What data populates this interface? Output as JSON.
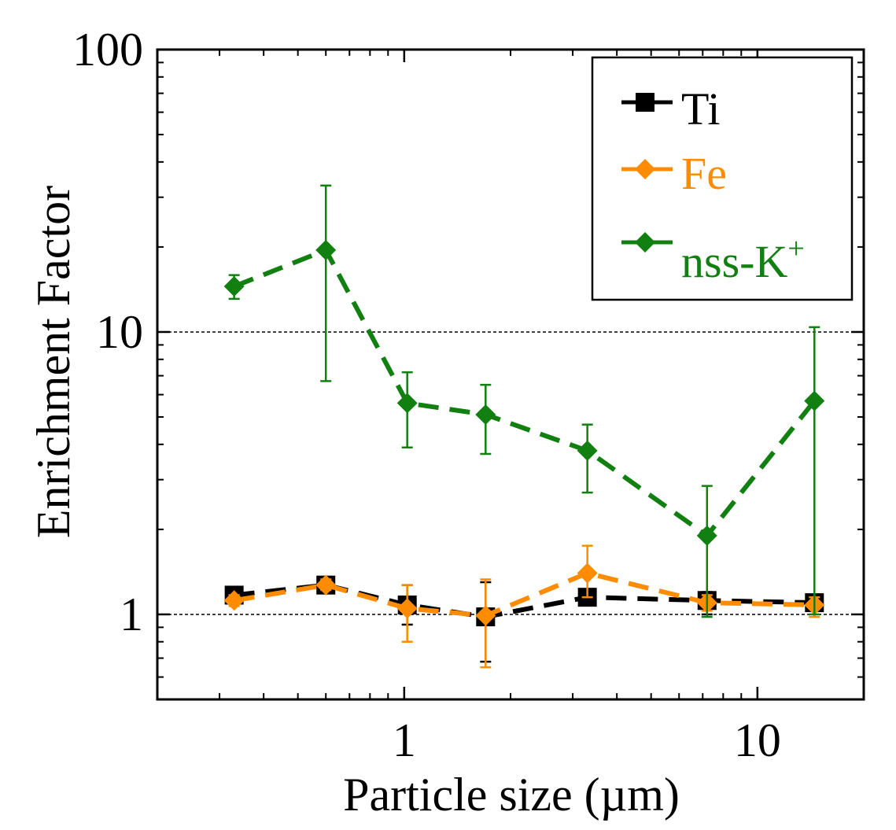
{
  "chart_data": {
    "type": "line",
    "xscale": "log",
    "yscale": "log",
    "xlim": [
      0.2,
      20
    ],
    "ylim": [
      0.5,
      100
    ],
    "xlabel": "Particle size (µm)",
    "ylabel": "Enrichment Factor",
    "x_ticks": [
      {
        "value": 1,
        "label": "1"
      },
      {
        "value": 10,
        "label": "10"
      }
    ],
    "y_ticks": [
      {
        "value": 1,
        "label": "1"
      },
      {
        "value": 10,
        "label": "10"
      },
      {
        "value": 100,
        "label": "100"
      }
    ],
    "gridlines_y": [
      1,
      10
    ],
    "legend_position": "top-right",
    "series": [
      {
        "name": "Ti",
        "color": "#000000",
        "marker": "square",
        "x": [
          0.33,
          0.6,
          1.02,
          1.7,
          3.3,
          7.2,
          14.5
        ],
        "values": [
          1.17,
          1.27,
          1.08,
          0.98,
          1.15,
          1.12,
          1.1
        ],
        "err_low": [
          1.12,
          1.2,
          0.92,
          0.68,
          1.12,
          1.0,
          1.05
        ],
        "err_high": [
          1.22,
          1.35,
          1.27,
          1.3,
          1.18,
          1.2,
          1.15
        ]
      },
      {
        "name": "Fe",
        "color": "#ff8c00",
        "marker": "diamond",
        "x": [
          0.33,
          0.6,
          1.02,
          1.7,
          3.3,
          7.2,
          14.5
        ],
        "values": [
          1.12,
          1.27,
          1.05,
          0.99,
          1.4,
          1.1,
          1.08
        ],
        "err_low": [
          1.07,
          1.22,
          0.8,
          0.65,
          1.15,
          1.03,
          0.98
        ],
        "err_high": [
          1.17,
          1.33,
          1.27,
          1.33,
          1.75,
          1.17,
          1.15
        ]
      },
      {
        "name": "nss-K⁺",
        "color": "#118011",
        "marker": "diamond",
        "x": [
          0.33,
          0.6,
          1.02,
          1.7,
          3.3,
          7.2,
          14.5
        ],
        "values": [
          14.5,
          19.5,
          5.6,
          5.1,
          3.8,
          1.9,
          5.7
        ],
        "err_low": [
          13.1,
          6.7,
          3.9,
          3.7,
          2.7,
          0.98,
          1.0
        ],
        "err_high": [
          15.9,
          33.0,
          7.2,
          6.5,
          4.7,
          2.85,
          10.4
        ]
      }
    ]
  },
  "legend": {
    "items": [
      {
        "label": "Ti",
        "color": "#000000",
        "marker": "square"
      },
      {
        "label": "Fe",
        "color": "#ff8c00",
        "marker": "diamond"
      },
      {
        "label": "nss-K",
        "sup": "+",
        "color": "#118011",
        "marker": "diamond"
      }
    ]
  }
}
